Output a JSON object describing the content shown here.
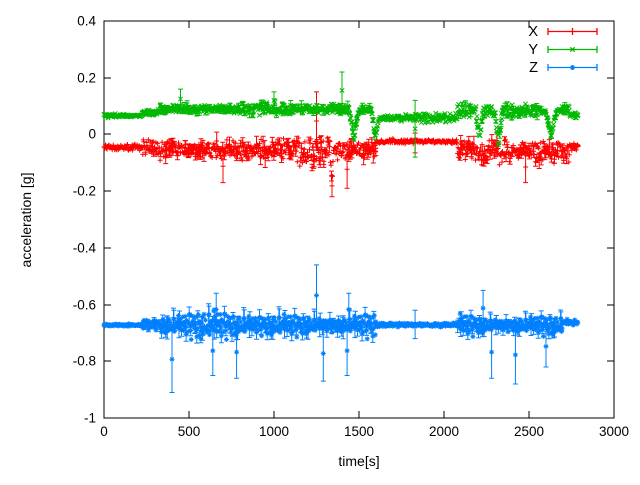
{
  "chart_data": {
    "type": "scatter",
    "style": "points-with-errorbars",
    "title": "",
    "xlabel": "time[s]",
    "ylabel": "acceleration [g]",
    "xlim": [
      0,
      3000
    ],
    "ylim": [
      -1,
      0.4
    ],
    "xticks": [
      0,
      500,
      1000,
      1500,
      2000,
      2500,
      3000
    ],
    "yticks": [
      0.4,
      0.2,
      0,
      -0.2,
      -0.4,
      -0.6,
      -0.8,
      -1
    ],
    "grid": false,
    "background_color": "#ffffff",
    "axis_color": "#000000",
    "legend_position": "top-right-inside",
    "sample_interval_s": 3,
    "t_end": 2790,
    "segment_fields": [
      "t_start",
      "t_end",
      "mean_g",
      "noise_amp_g",
      "errorbar_amp_g"
    ],
    "spike_fields": [
      "t",
      "extreme_value_g",
      "half_width_s"
    ],
    "outlier_fields": [
      "t",
      "value_g",
      "error_g"
    ],
    "series": [
      {
        "name": "X",
        "color": "#ff0000",
        "marker": "plus",
        "segments": [
          [
            0,
            225,
            -0.045,
            0.012,
            0
          ],
          [
            225,
            330,
            -0.05,
            0.03,
            0.02
          ],
          [
            330,
            1600,
            -0.055,
            0.05,
            0.04
          ],
          [
            1600,
            2080,
            -0.025,
            0.012,
            0
          ],
          [
            2080,
            2740,
            -0.06,
            0.045,
            0.035
          ],
          [
            2740,
            2790,
            -0.045,
            0.02,
            0.01
          ]
        ],
        "spikes": [
          [
            700,
            -0.17,
            8
          ],
          [
            1250,
            0.15,
            5
          ],
          [
            1340,
            -0.2,
            12
          ],
          [
            1430,
            -0.19,
            10
          ],
          [
            2480,
            -0.17,
            8
          ]
        ],
        "outliers": [
          [
            1830,
            -0.03,
            0.035
          ]
        ]
      },
      {
        "name": "Y",
        "color": "#00b800",
        "marker": "cross",
        "segments": [
          [
            0,
            225,
            0.066,
            0.009,
            0
          ],
          [
            225,
            330,
            0.078,
            0.02,
            0.01
          ],
          [
            330,
            1600,
            0.09,
            0.022,
            0.02
          ],
          [
            1600,
            2080,
            0.058,
            0.018,
            0
          ],
          [
            2080,
            2740,
            0.085,
            0.03,
            0.02
          ],
          [
            2740,
            2790,
            0.07,
            0.02,
            0
          ]
        ],
        "spikes": [
          [
            450,
            0.16,
            4
          ],
          [
            1000,
            0.15,
            4
          ],
          [
            1400,
            0.22,
            5
          ],
          [
            1470,
            -0.03,
            30
          ],
          [
            1595,
            -0.02,
            25
          ],
          [
            2210,
            -0.03,
            25
          ],
          [
            2320,
            -0.03,
            30
          ],
          [
            2630,
            -0.02,
            35
          ]
        ],
        "outliers": [
          [
            1830,
            0.02,
            0.1
          ]
        ]
      },
      {
        "name": "Z",
        "color": "#0080ff",
        "marker": "star",
        "segments": [
          [
            0,
            225,
            -0.672,
            0.006,
            0
          ],
          [
            225,
            330,
            -0.672,
            0.03,
            0.02
          ],
          [
            330,
            1600,
            -0.675,
            0.05,
            0.05
          ],
          [
            1600,
            2080,
            -0.672,
            0.008,
            0
          ],
          [
            2080,
            2700,
            -0.675,
            0.045,
            0.04
          ],
          [
            2700,
            2790,
            -0.665,
            0.018,
            0
          ]
        ],
        "spikes": [
          [
            400,
            -0.91,
            5
          ],
          [
            640,
            -0.85,
            5
          ],
          [
            660,
            -0.56,
            4
          ],
          [
            780,
            -0.86,
            6
          ],
          [
            1250,
            -0.46,
            5
          ],
          [
            1290,
            -0.87,
            6
          ],
          [
            1430,
            -0.85,
            6
          ],
          [
            1440,
            -0.56,
            4
          ],
          [
            2230,
            -0.55,
            5
          ],
          [
            2280,
            -0.86,
            6
          ],
          [
            2420,
            -0.88,
            6
          ],
          [
            2600,
            -0.82,
            6
          ]
        ],
        "outliers": [
          [
            1830,
            -0.67,
            0.05
          ]
        ]
      }
    ]
  }
}
